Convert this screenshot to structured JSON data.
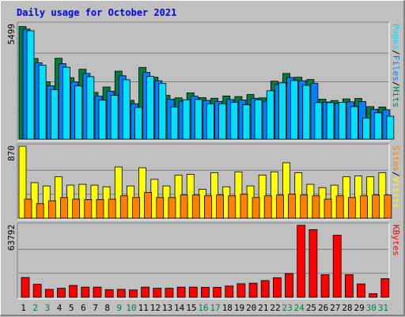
{
  "chart_data": {
    "type": "bar",
    "title": "Daily usage for October 2021",
    "days": [
      "1",
      "2",
      "3",
      "4",
      "5",
      "6",
      "7",
      "8",
      "9",
      "10",
      "11",
      "12",
      "13",
      "14",
      "15",
      "16",
      "17",
      "18",
      "19",
      "20",
      "21",
      "22",
      "23",
      "24",
      "25",
      "26",
      "27",
      "28",
      "29",
      "30",
      "31"
    ],
    "weekend_days": [
      "2",
      "3",
      "9",
      "10",
      "16",
      "17",
      "23",
      "24",
      "30",
      "31"
    ],
    "colors": {
      "hits": "#008040",
      "files": "#0080ff",
      "pages": "#00e0ff",
      "visits": "#ffff00",
      "sites": "#ff8000",
      "kbytes": "#ff0000",
      "panel_bg": "#c0c0c0",
      "weekday_label": "#000000",
      "weekend_label": "#008040",
      "title": "#0000ff"
    },
    "panels": [
      {
        "ymax_label": "5499",
        "ymax": 5499,
        "legend": [
          {
            "text": "Pages",
            "color": "#00e0ff"
          },
          {
            "text": "Files",
            "color": "#0080ff"
          },
          {
            "text": "Hits",
            "color": "#008040"
          }
        ],
        "series": [
          {
            "name": "Hits",
            "color": "#008040",
            "values": [
              5400,
              3870,
              2750,
              3880,
              2950,
              3350,
              2240,
              2500,
              3260,
              1860,
              3440,
              2970,
              2100,
              1980,
              2220,
              1990,
              1960,
              2070,
              2040,
              2140,
              1980,
              2780,
              3150,
              2970,
              2860,
              1920,
              1850,
              1930,
              1950,
              1560,
              1540
            ]
          },
          {
            "name": "Files",
            "color": "#0080ff",
            "values": [
              5280,
              3660,
              2560,
              3620,
              2740,
              3150,
              2060,
              2300,
              3040,
              1700,
              3200,
              2800,
              1920,
              1820,
              2060,
              1860,
              1810,
              1900,
              1880,
              1960,
              1820,
              2620,
              2960,
              2800,
              2680,
              1780,
              1720,
              1790,
              1800,
              1430,
              1410
            ]
          },
          {
            "name": "Pages",
            "color": "#00e0ff",
            "values": [
              5200,
              3550,
              2370,
              3450,
              2550,
              3000,
              1870,
              2100,
              2850,
              1520,
              3010,
              2670,
              1540,
              1890,
              1900,
              1690,
              1690,
              1760,
              1650,
              1890,
              2320,
              2700,
              2810,
              2580,
              1750,
              1750,
              1760,
              1560,
              1010,
              1260,
              1100
            ]
          }
        ]
      },
      {
        "ymax_label": "870",
        "ymax": 870,
        "legend": [
          {
            "text": "Sites",
            "color": "#ff8000"
          },
          {
            "text": "Visits",
            "color": "#ffff00"
          }
        ],
        "series": [
          {
            "name": "Visits",
            "color": "#ffff00",
            "values": [
              870,
              430,
              390,
              500,
              400,
              410,
              400,
              380,
              620,
              390,
              610,
              470,
              390,
              520,
              530,
              350,
              550,
              380,
              560,
              390,
              520,
              560,
              670,
              550,
              410,
              370,
              400,
              500,
              510,
              500,
              550
            ]
          },
          {
            "name": "Sites",
            "color": "#ff8000",
            "values": [
              230,
              175,
              210,
              250,
              230,
              225,
              225,
              230,
              270,
              250,
              310,
              250,
              250,
              280,
              280,
              270,
              280,
              270,
              290,
              250,
              270,
              280,
              290,
              280,
              270,
              230,
              270,
              250,
              270,
              280,
              280
            ]
          }
        ]
      },
      {
        "ymax_label": "63792",
        "ymax": 63792,
        "legend": [
          {
            "text": "KBytes",
            "color": "#ff0000"
          }
        ],
        "series": [
          {
            "name": "KBytes",
            "color": "#ff0000",
            "values": [
              17500,
              11500,
              7000,
              8000,
              10500,
              9000,
              9000,
              6800,
              7000,
              6500,
              9000,
              8000,
              8000,
              9000,
              9000,
              8800,
              8800,
              10000,
              12000,
              12500,
              14800,
              17300,
              21000,
              63792,
              60000,
              20000,
              55000,
              20000,
              11800,
              3200,
              16500
            ]
          }
        ]
      }
    ]
  }
}
